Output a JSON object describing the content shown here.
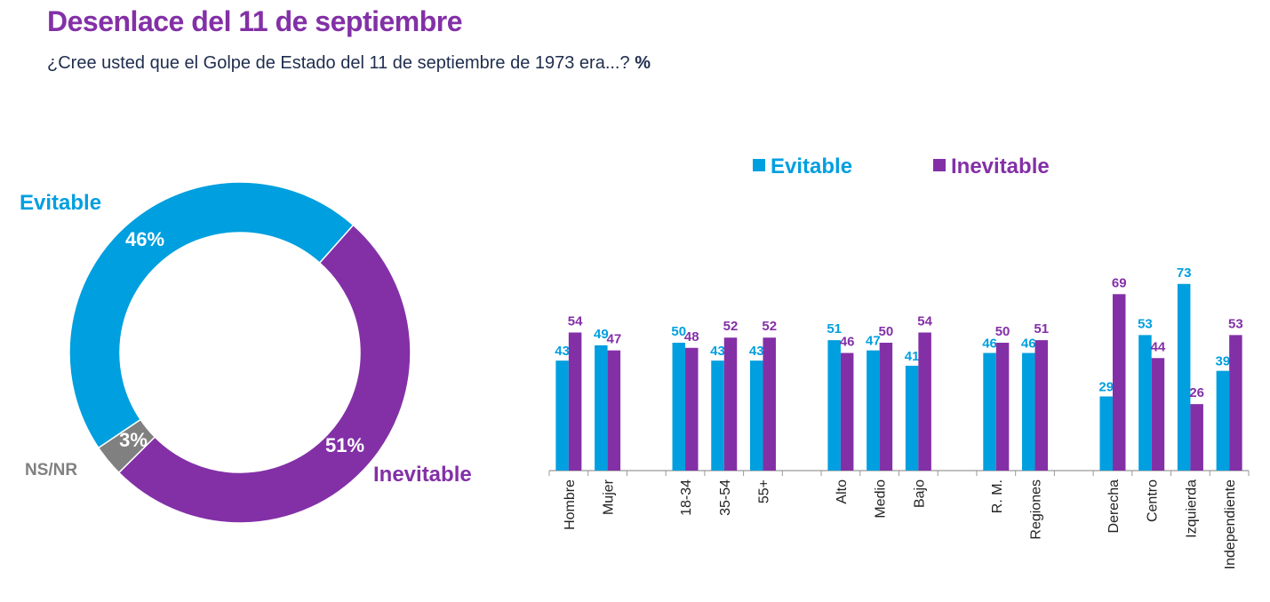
{
  "header": {
    "title": "Desenlace del 11 de septiembre",
    "subtitle": "¿Cree usted que el Golpe de Estado del 11 de septiembre de 1973 era...?",
    "unit": "%"
  },
  "colors": {
    "evitable": "#009fdf",
    "inevitable": "#8330a7",
    "nsnr": "#808080"
  },
  "chart_data": [
    {
      "type": "pie",
      "variant": "donut",
      "slices": [
        {
          "label": "Inevitable",
          "value": 51,
          "display": "51%",
          "color": "#8330a7"
        },
        {
          "label": "NS/NR",
          "value": 3,
          "display": "3%",
          "color": "#808080"
        },
        {
          "label": "Evitable",
          "value": 46,
          "display": "46%",
          "color": "#009fdf"
        }
      ]
    },
    {
      "type": "bar",
      "legend": [
        "Evitable",
        "Inevitable"
      ],
      "legend_position": "top",
      "categories": [
        "Hombre",
        "Mujer",
        "",
        "18-34",
        "35-54",
        "55+",
        "",
        "Alto",
        "Medio",
        "Bajo",
        "",
        "R. M.",
        "Regiones",
        "",
        "Derecha",
        "Centro",
        "Izquierda",
        "Independiente"
      ],
      "series": [
        {
          "name": "Evitable",
          "color": "#009fdf",
          "values": [
            43,
            49,
            null,
            50,
            43,
            43,
            null,
            51,
            47,
            41,
            null,
            46,
            46,
            null,
            29,
            53,
            73,
            39
          ]
        },
        {
          "name": "Inevitable",
          "color": "#8330a7",
          "values": [
            54,
            47,
            null,
            48,
            52,
            52,
            null,
            46,
            50,
            54,
            null,
            50,
            51,
            null,
            69,
            44,
            26,
            53
          ]
        }
      ],
      "ylim": [
        0,
        73
      ],
      "grid": false
    }
  ]
}
